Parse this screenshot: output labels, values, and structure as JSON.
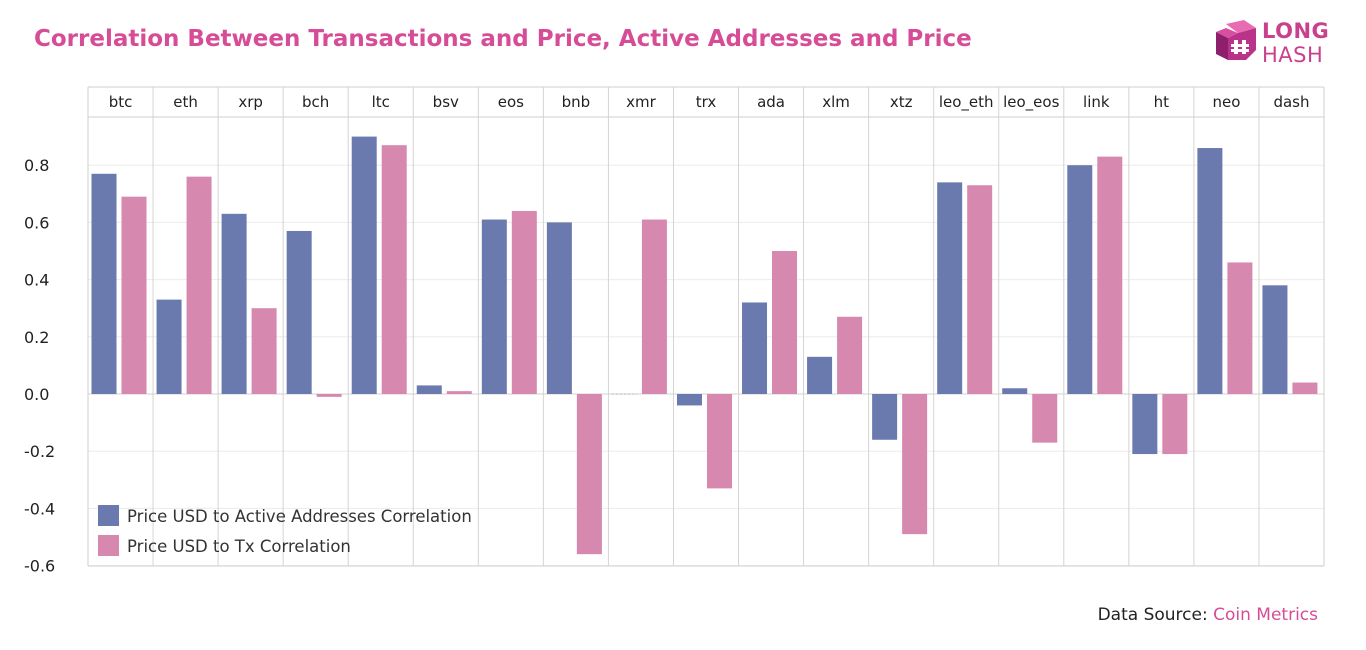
{
  "title": "Correlation Between Transactions and Price, Active Addresses and Price",
  "logo": {
    "line1": "LONG",
    "line2": "HASH",
    "color": "#c9408c"
  },
  "source": {
    "prefix": "Data Source:",
    "name": "Coin Metrics"
  },
  "chart_data": {
    "type": "bar",
    "categories": [
      "btc",
      "eth",
      "xrp",
      "bch",
      "ltc",
      "bsv",
      "eos",
      "bnb",
      "xmr",
      "trx",
      "ada",
      "xlm",
      "xtz",
      "leo_eth",
      "leo_eos",
      "link",
      "ht",
      "neo",
      "dash"
    ],
    "series": [
      {
        "name": "Price USD to Active Addresses Correlation",
        "color": "#6a79ae",
        "values": [
          0.77,
          0.33,
          0.63,
          0.57,
          0.9,
          0.03,
          0.61,
          0.6,
          null,
          -0.04,
          0.32,
          0.13,
          -0.16,
          0.74,
          0.02,
          0.8,
          -0.21,
          0.86,
          0.38
        ]
      },
      {
        "name": "Price USD to Tx Correlation",
        "color": "#d688ae",
        "values": [
          0.69,
          0.76,
          0.3,
          -0.01,
          0.87,
          0.01,
          0.64,
          -0.56,
          0.61,
          -0.33,
          0.5,
          0.27,
          -0.49,
          0.73,
          -0.17,
          0.83,
          -0.21,
          0.46,
          0.04
        ]
      }
    ],
    "y_ticks": [
      0.8,
      0.6,
      0.4,
      0.2,
      0.0,
      -0.2,
      -0.4,
      -0.6
    ],
    "y_tick_labels": [
      "0.8",
      "0.6",
      "0.4",
      "0.2",
      "0.0",
      "-0.2",
      "-0.4",
      "-0.6"
    ],
    "ylim": [
      -0.6,
      0.97
    ],
    "legend_position": "bottom-left",
    "grid": true
  }
}
